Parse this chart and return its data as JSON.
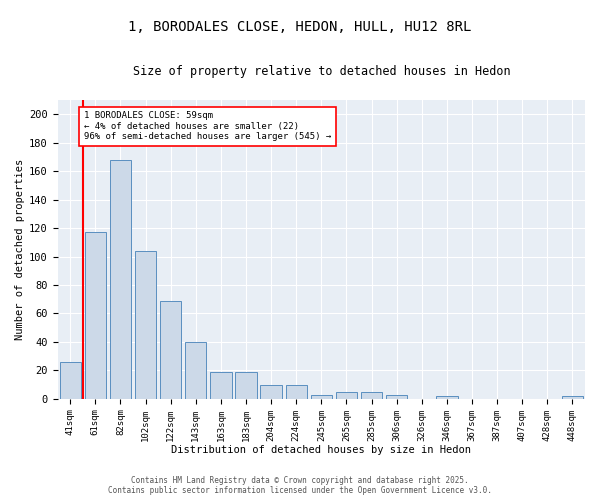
{
  "title": "1, BORODALES CLOSE, HEDON, HULL, HU12 8RL",
  "subtitle": "Size of property relative to detached houses in Hedon",
  "xlabel": "Distribution of detached houses by size in Hedon",
  "ylabel": "Number of detached properties",
  "bar_color": "#ccd9e8",
  "bar_edge_color": "#5a8fc0",
  "background_color": "#e8eef5",
  "categories": [
    "41sqm",
    "61sqm",
    "82sqm",
    "102sqm",
    "122sqm",
    "143sqm",
    "163sqm",
    "183sqm",
    "204sqm",
    "224sqm",
    "245sqm",
    "265sqm",
    "285sqm",
    "306sqm",
    "326sqm",
    "346sqm",
    "367sqm",
    "387sqm",
    "407sqm",
    "428sqm",
    "448sqm"
  ],
  "values": [
    26,
    117,
    168,
    104,
    69,
    40,
    19,
    19,
    10,
    10,
    3,
    5,
    5,
    3,
    0,
    2,
    0,
    0,
    0,
    0,
    2
  ],
  "ylim": [
    0,
    210
  ],
  "yticks": [
    0,
    20,
    40,
    60,
    80,
    100,
    120,
    140,
    160,
    180,
    200
  ],
  "annotation_text": "1 BORODALES CLOSE: 59sqm\n← 4% of detached houses are smaller (22)\n96% of semi-detached houses are larger (545) →",
  "footer_line1": "Contains HM Land Registry data © Crown copyright and database right 2025.",
  "footer_line2": "Contains public sector information licensed under the Open Government Licence v3.0."
}
